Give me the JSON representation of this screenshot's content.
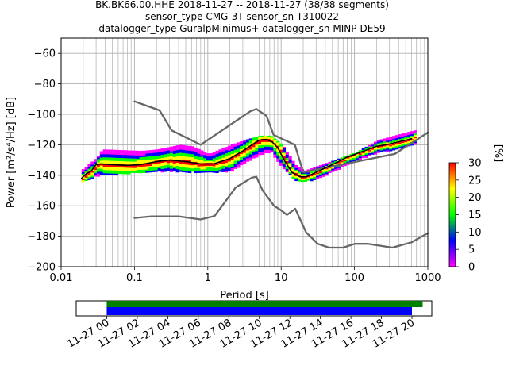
{
  "title": {
    "line1": "BK.BK66.00.HHE   2018-11-27 -- 2018-11-27  (38/38 segments)",
    "line2": "sensor_type CMG-3T sensor_sn T310022",
    "line3": "datalogger_type GuralpMinimus+ datalogger_sn MINP-DE59"
  },
  "chart_data": {
    "type": "heatmap",
    "xlabel": "Period [s]",
    "ylabel": "Power [m²/s⁴/Hz] [dB]",
    "x_scale": "log",
    "xlim": [
      0.01,
      1000
    ],
    "ylim": [
      -200,
      -50
    ],
    "x_ticks": [
      0.01,
      0.1,
      1,
      10,
      100,
      1000
    ],
    "x_tick_labels": [
      "0.01",
      "0.1",
      "1",
      "10",
      "100",
      "1000"
    ],
    "y_ticks": [
      -200,
      -180,
      -160,
      -140,
      -120,
      -100,
      -80,
      -60
    ],
    "y_tick_labels": [
      "−200",
      "−180",
      "−160",
      "−140",
      "−120",
      "−100",
      "−80",
      "−60"
    ],
    "grid": true,
    "series": [
      {
        "name": "",
        "role": "nhnm",
        "color": "#666666",
        "points": [
          [
            0.1,
            -91.5
          ],
          [
            0.22,
            -97.4
          ],
          [
            0.32,
            -110.5
          ],
          [
            0.8,
            -120
          ],
          [
            3.8,
            -98
          ],
          [
            4.6,
            -96.5
          ],
          [
            6.3,
            -101
          ],
          [
            7.9,
            -113.5
          ],
          [
            15.4,
            -120
          ],
          [
            20,
            -138
          ],
          [
            354.8,
            -126
          ],
          [
            1000,
            -112
          ]
        ]
      },
      {
        "name": "",
        "role": "nlnm",
        "color": "#666666",
        "points": [
          [
            0.1,
            -168
          ],
          [
            0.17,
            -167
          ],
          [
            0.4,
            -167
          ],
          [
            0.8,
            -169
          ],
          [
            1.24,
            -166.7
          ],
          [
            2.4,
            -148
          ],
          [
            4,
            -141.5
          ],
          [
            4.6,
            -141
          ],
          [
            5.6,
            -150
          ],
          [
            8,
            -160
          ],
          [
            10,
            -163
          ],
          [
            12,
            -166
          ],
          [
            15.6,
            -162
          ],
          [
            21.9,
            -177.5
          ],
          [
            31.6,
            -185
          ],
          [
            45,
            -187.5
          ],
          [
            70,
            -187.5
          ],
          [
            101,
            -185
          ],
          [
            154,
            -185
          ],
          [
            328,
            -187.5
          ],
          [
            600,
            -184
          ],
          [
            1000,
            -178
          ]
        ]
      },
      {
        "name": "",
        "role": "mode",
        "color": "#000000",
        "points": [
          [
            0.019,
            -142
          ],
          [
            0.022,
            -139
          ],
          [
            0.026,
            -137
          ],
          [
            0.03,
            -133
          ],
          [
            0.035,
            -132.5
          ],
          [
            0.05,
            -133
          ],
          [
            0.08,
            -133.5
          ],
          [
            0.12,
            -133
          ],
          [
            0.2,
            -131
          ],
          [
            0.3,
            -130
          ],
          [
            0.5,
            -131
          ],
          [
            0.8,
            -132.5
          ],
          [
            1.2,
            -132.5
          ],
          [
            2,
            -129
          ],
          [
            3,
            -124
          ],
          [
            4,
            -120
          ],
          [
            5,
            -117
          ],
          [
            6.3,
            -116.5
          ],
          [
            7.5,
            -118
          ],
          [
            9,
            -122
          ],
          [
            11,
            -130
          ],
          [
            14,
            -138
          ],
          [
            18,
            -141
          ],
          [
            22,
            -141
          ],
          [
            30,
            -138
          ],
          [
            50,
            -133
          ],
          [
            80,
            -128
          ],
          [
            120,
            -125
          ],
          [
            200,
            -121
          ],
          [
            300,
            -119.5
          ],
          [
            500,
            -117
          ],
          [
            600,
            -116
          ]
        ]
      }
    ],
    "density_band": {
      "color_scale": [
        "#ff00ff",
        "#0000ff",
        "#00ff00",
        "#ffff00",
        "#ff0000"
      ],
      "upper": [
        [
          0.019,
          -136
        ],
        [
          0.03,
          -128
        ],
        [
          0.035,
          -123
        ],
        [
          0.12,
          -124
        ],
        [
          0.2,
          -123
        ],
        [
          0.4,
          -120
        ],
        [
          0.6,
          -121
        ],
        [
          1,
          -126
        ],
        [
          2,
          -120
        ],
        [
          3,
          -117
        ],
        [
          5,
          -114
        ],
        [
          7,
          -114
        ],
        [
          10,
          -120
        ],
        [
          15,
          -133
        ],
        [
          20,
          -137
        ],
        [
          30,
          -134
        ],
        [
          100,
          -125
        ],
        [
          200,
          -117
        ],
        [
          400,
          -113
        ],
        [
          700,
          -110
        ]
      ],
      "lower": [
        [
          0.019,
          -144
        ],
        [
          0.03,
          -140
        ],
        [
          0.1,
          -138
        ],
        [
          0.3,
          -137
        ],
        [
          1,
          -138
        ],
        [
          2,
          -137
        ],
        [
          3,
          -132
        ],
        [
          5,
          -126
        ],
        [
          7,
          -124
        ],
        [
          10,
          -135
        ],
        [
          15,
          -143
        ],
        [
          20,
          -144
        ],
        [
          30,
          -142
        ],
        [
          100,
          -130
        ],
        [
          200,
          -125
        ],
        [
          400,
          -122
        ],
        [
          700,
          -119
        ]
      ]
    }
  },
  "colorbar": {
    "label": "[%]",
    "min": 0,
    "max": 30,
    "ticks": [
      0,
      5,
      10,
      15,
      20,
      25,
      30
    ],
    "tick_labels": [
      "0",
      "5",
      "10",
      "15",
      "20",
      "25",
      "30"
    ]
  },
  "timeline": {
    "ticks": [
      "11-27 00",
      "11-27 02",
      "11-27 04",
      "11-27 06",
      "11-27 08",
      "11-27 10",
      "11-27 12",
      "11-27 14",
      "11-27 16",
      "11-27 18",
      "11-27 20"
    ],
    "range_hours": [
      -2,
      21.3
    ],
    "green_bar_hours": [
      0,
      20.7
    ],
    "blue_bar_hours": [
      0,
      20.0
    ],
    "colors": {
      "green": "#008000",
      "blue": "#0000ff"
    }
  }
}
